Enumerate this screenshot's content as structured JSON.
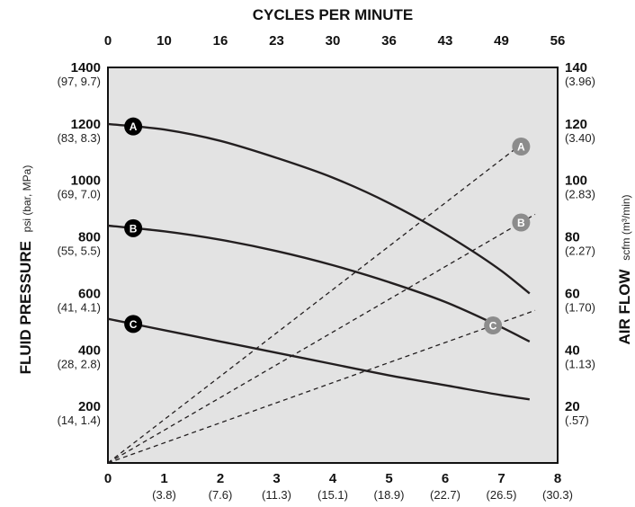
{
  "chart_data": {
    "type": "line",
    "top_axis": {
      "title": "CYCLES PER MINUTE",
      "ticks": [
        "0",
        "10",
        "16",
        "23",
        "30",
        "36",
        "43",
        "49",
        "56"
      ]
    },
    "bottom_axis": {
      "ticks": [
        "0",
        "1",
        "2",
        "3",
        "4",
        "5",
        "6",
        "7",
        "8"
      ],
      "sub_ticks": [
        "",
        "(3.8)",
        "(7.6)",
        "(11.3)",
        "(15.1)",
        "(18.9)",
        "(22.7)",
        "(26.5)",
        "(30.3)"
      ],
      "xlim": [
        0,
        8
      ]
    },
    "left_axis": {
      "title": "FLUID PRESSURE",
      "unit": "psi (bar, MPa)",
      "ylim": [
        0,
        1400
      ],
      "ticks": [
        {
          "value": 1400,
          "label": "1400",
          "sub": "(97, 9.7)"
        },
        {
          "value": 1200,
          "label": "1200",
          "sub": "(83, 8.3)"
        },
        {
          "value": 1000,
          "label": "1000",
          "sub": "(69, 7.0)"
        },
        {
          "value": 800,
          "label": "800",
          "sub": "(55, 5.5)"
        },
        {
          "value": 600,
          "label": "600",
          "sub": "(41, 4.1)"
        },
        {
          "value": 400,
          "label": "400",
          "sub": "(28, 2.8)"
        },
        {
          "value": 200,
          "label": "200",
          "sub": "(14, 1.4)"
        }
      ]
    },
    "right_axis": {
      "title": "AIR FLOW",
      "unit": "scfm (m³/min)",
      "ylim": [
        0,
        140
      ],
      "ticks": [
        {
          "value": 140,
          "label": "140",
          "sub": "(3.96)"
        },
        {
          "value": 120,
          "label": "120",
          "sub": "(3.40)"
        },
        {
          "value": 100,
          "label": "100",
          "sub": "(2.83)"
        },
        {
          "value": 80,
          "label": "80",
          "sub": "(2.27)"
        },
        {
          "value": 60,
          "label": "60",
          "sub": "(1.70)"
        },
        {
          "value": 40,
          "label": "40",
          "sub": "(1.13)"
        },
        {
          "value": 20,
          "label": "20",
          "sub": "(.57)"
        }
      ]
    },
    "pressure_series": [
      {
        "name": "A",
        "x": [
          0,
          1,
          2,
          3,
          4,
          5,
          6,
          7,
          7.5
        ],
        "y": [
          1200,
          1180,
          1140,
          1080,
          1010,
          920,
          810,
          680,
          600
        ]
      },
      {
        "name": "B",
        "x": [
          0,
          1,
          2,
          3,
          4,
          5,
          6,
          7,
          7.5
        ],
        "y": [
          840,
          820,
          790,
          750,
          700,
          640,
          570,
          480,
          430
        ]
      },
      {
        "name": "C",
        "x": [
          0,
          1,
          2,
          3,
          4,
          5,
          6,
          7,
          7.5
        ],
        "y": [
          510,
          470,
          430,
          390,
          350,
          310,
          275,
          240,
          225
        ]
      }
    ],
    "airflow_series": [
      {
        "name": "A",
        "x": [
          0,
          7.3
        ],
        "y": [
          0,
          112
        ]
      },
      {
        "name": "B",
        "x": [
          0,
          7.6
        ],
        "y": [
          0,
          88
        ]
      },
      {
        "name": "C",
        "x": [
          0,
          7.6
        ],
        "y": [
          0,
          54
        ]
      }
    ],
    "pressure_label_positions": {
      "A": 0.45,
      "B": 0.45,
      "C": 0.45
    },
    "airflow_label_positions": {
      "A": 7.35,
      "B": 7.35,
      "C": 6.85
    },
    "colors": {
      "plot_background": "#e3e3e3",
      "pressure_curve": "#231f20",
      "airflow_line": "#231f20",
      "pressure_marker": "#000000",
      "airflow_marker": "#8c8c8c"
    }
  }
}
